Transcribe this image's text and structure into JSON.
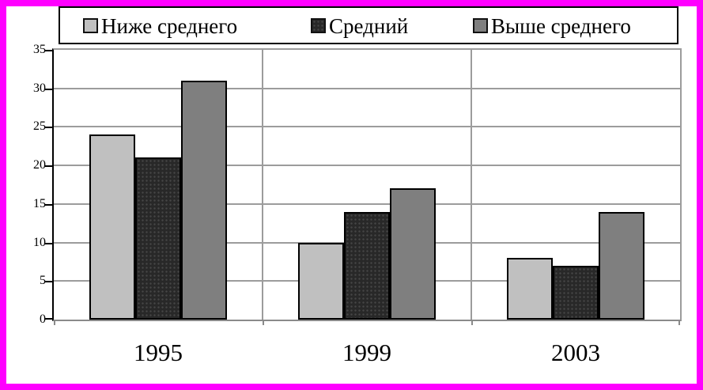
{
  "chart_data": {
    "type": "bar",
    "title": "",
    "categories": [
      "1995",
      "1999",
      "2003"
    ],
    "series": [
      {
        "name": "Ниже среднего",
        "color": "#c0c0c0",
        "texture": "none",
        "values": [
          24,
          10,
          8
        ]
      },
      {
        "name": "Средний",
        "color": "#282828",
        "texture": "dots",
        "values": [
          21,
          14,
          7
        ]
      },
      {
        "name": "Выше среднего",
        "color": "#7f7f7f",
        "texture": "none",
        "values": [
          31,
          17,
          14
        ]
      }
    ],
    "ylim": [
      0,
      35
    ],
    "yticks": [
      0,
      5,
      10,
      15,
      20,
      25,
      30,
      35
    ],
    "xlabel": "",
    "ylabel": "",
    "grid": true,
    "legend_position": "top"
  },
  "colors": {
    "frame": "#ff00ff",
    "background": "#ffffff",
    "gridline": "#9c9c9c",
    "axis": "#000000",
    "bar_border": "#000000"
  }
}
